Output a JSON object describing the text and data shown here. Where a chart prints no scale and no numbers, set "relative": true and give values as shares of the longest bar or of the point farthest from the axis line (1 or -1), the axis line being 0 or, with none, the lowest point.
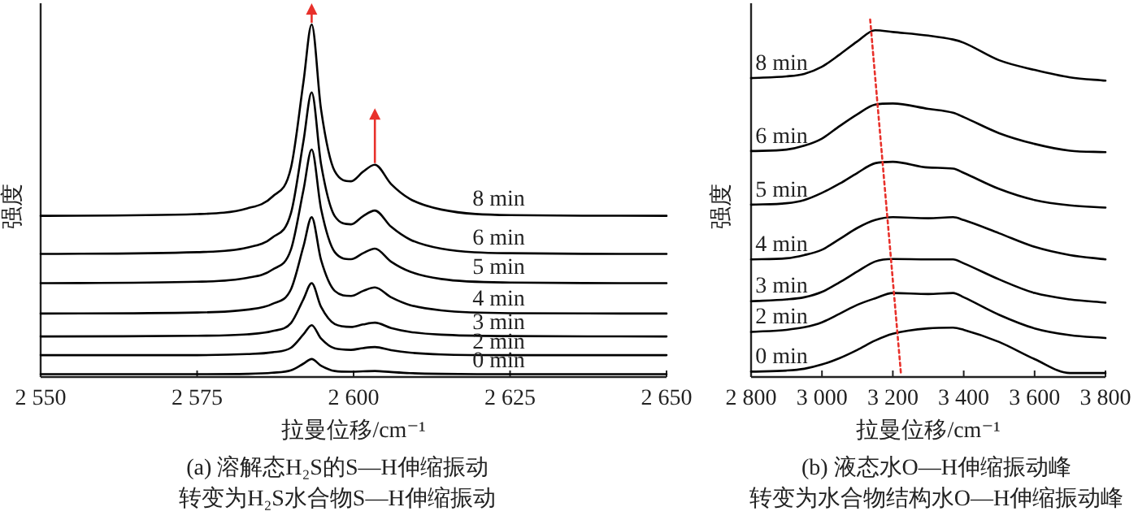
{
  "chart_data": [
    {
      "type": "line",
      "relative": true,
      "title": "(a) 溶解态H₂S的S—H伸缩振动",
      "subtitle": "转变为H₂S水合物S—H伸缩振动",
      "xlabel": "拉曼位移/cm⁻¹",
      "ylabel": "强度",
      "tick_labels": "x",
      "grid": false,
      "xlim": [
        2550,
        2650
      ],
      "xticks": [
        {
          "value": 2550,
          "label": "2 550"
        },
        {
          "value": 2575,
          "label": "2 575"
        },
        {
          "value": 2600,
          "label": "2 600"
        },
        {
          "value": 2625,
          "label": "2 625"
        },
        {
          "value": 2650,
          "label": "2 650"
        }
      ],
      "x": [
        2550,
        2575,
        2583,
        2587,
        2590,
        2592,
        2593.3,
        2594.8,
        2597,
        2599.6,
        2601.5,
        2603.4,
        2606,
        2609,
        2614,
        2625,
        2650
      ],
      "series": [
        {
          "name": "8 min",
          "color": "#000000",
          "values": [
            0.457,
            0.462,
            0.478,
            0.511,
            0.594,
            0.838,
            1.0,
            0.759,
            0.583,
            0.555,
            0.582,
            0.602,
            0.547,
            0.505,
            0.475,
            0.459,
            0.457
          ]
        },
        {
          "name": "6 min",
          "color": "#000000",
          "values": [
            0.349,
            0.354,
            0.367,
            0.395,
            0.465,
            0.67,
            0.807,
            0.604,
            0.456,
            0.433,
            0.456,
            0.472,
            0.426,
            0.39,
            0.364,
            0.351,
            0.349
          ]
        },
        {
          "name": "5 min",
          "color": "#000000",
          "values": [
            0.266,
            0.27,
            0.281,
            0.304,
            0.362,
            0.531,
            0.645,
            0.477,
            0.354,
            0.334,
            0.351,
            0.364,
            0.327,
            0.299,
            0.278,
            0.268,
            0.266
          ]
        },
        {
          "name": "4 min",
          "color": "#000000",
          "values": [
            0.18,
            0.183,
            0.191,
            0.207,
            0.249,
            0.371,
            0.453,
            0.332,
            0.244,
            0.23,
            0.244,
            0.254,
            0.226,
            0.204,
            0.189,
            0.181,
            0.18
          ]
        },
        {
          "name": "3 min",
          "color": "#000000",
          "values": [
            0.115,
            0.117,
            0.121,
            0.13,
            0.153,
            0.221,
            0.266,
            0.199,
            0.15,
            0.142,
            0.149,
            0.154,
            0.139,
            0.128,
            0.12,
            0.116,
            0.115
          ]
        },
        {
          "name": "2 min",
          "color": "#000000",
          "values": [
            0.062,
            0.062,
            0.065,
            0.07,
            0.083,
            0.121,
            0.147,
            0.109,
            0.081,
            0.077,
            0.082,
            0.085,
            0.076,
            0.069,
            0.064,
            0.062,
            0.062
          ]
        },
        {
          "name": "0 min",
          "color": "#000000",
          "values": [
            0.008,
            0.008,
            0.009,
            0.012,
            0.019,
            0.038,
            0.051,
            0.032,
            0.017,
            0.015,
            0.016,
            0.017,
            0.014,
            0.011,
            0.009,
            0.008,
            0.008
          ]
        }
      ]
    },
    {
      "type": "line",
      "relative": true,
      "title": "(b) 液态水O—H伸缩振动峰",
      "subtitle": "转变为水合物结构水O—H伸缩振动峰",
      "xlabel": "拉曼位移/cm⁻¹",
      "ylabel": "强度",
      "tick_labels": "x",
      "grid": false,
      "xlim": [
        2800,
        3800
      ],
      "xticks": [
        {
          "value": 2800,
          "label": "2 800"
        },
        {
          "value": 3000,
          "label": "3 000"
        },
        {
          "value": 3200,
          "label": "3 200"
        },
        {
          "value": 3400,
          "label": "3 400"
        },
        {
          "value": 3600,
          "label": "3 600"
        },
        {
          "value": 3800,
          "label": "3 800"
        }
      ],
      "x": [
        2800,
        2900,
        2950,
        3000,
        3050,
        3100,
        3150,
        3200,
        3300,
        3370,
        3400,
        3500,
        3600,
        3700,
        3800
      ],
      "series": [
        {
          "name": "8 min",
          "color": "#000000",
          "values": [
            0.836,
            0.841,
            0.848,
            0.868,
            0.902,
            0.939,
            0.97,
            0.965,
            0.955,
            0.944,
            0.935,
            0.886,
            0.859,
            0.838,
            0.829
          ]
        },
        {
          "name": "6 min",
          "color": "#000000",
          "values": [
            0.632,
            0.636,
            0.647,
            0.667,
            0.702,
            0.735,
            0.762,
            0.765,
            0.75,
            0.739,
            0.727,
            0.682,
            0.652,
            0.633,
            0.629
          ]
        },
        {
          "name": "5 min",
          "color": "#000000",
          "values": [
            0.482,
            0.486,
            0.495,
            0.515,
            0.541,
            0.571,
            0.598,
            0.602,
            0.586,
            0.583,
            0.571,
            0.526,
            0.495,
            0.48,
            0.474
          ]
        },
        {
          "name": "4 min",
          "color": "#000000",
          "values": [
            0.329,
            0.332,
            0.341,
            0.356,
            0.386,
            0.417,
            0.439,
            0.447,
            0.444,
            0.447,
            0.439,
            0.402,
            0.364,
            0.341,
            0.329
          ]
        },
        {
          "name": "3 min",
          "color": "#000000",
          "values": [
            0.212,
            0.217,
            0.223,
            0.238,
            0.265,
            0.295,
            0.323,
            0.33,
            0.329,
            0.329,
            0.318,
            0.273,
            0.235,
            0.217,
            0.208
          ]
        },
        {
          "name": "2 min",
          "color": "#000000",
          "values": [
            0.126,
            0.132,
            0.139,
            0.153,
            0.177,
            0.202,
            0.22,
            0.235,
            0.232,
            0.235,
            0.223,
            0.174,
            0.136,
            0.117,
            0.109
          ]
        },
        {
          "name": "0 min",
          "color": "#000000",
          "values": [
            0.015,
            0.018,
            0.023,
            0.035,
            0.053,
            0.076,
            0.102,
            0.121,
            0.136,
            0.138,
            0.132,
            0.098,
            0.05,
            0.011,
            0.011
          ]
        },
        {
          "color": "#e8302a",
          "line_style": "dotted",
          "x": [
            3136,
            3223
          ],
          "values": [
            1.0,
            0.008
          ]
        }
      ]
    }
  ]
}
